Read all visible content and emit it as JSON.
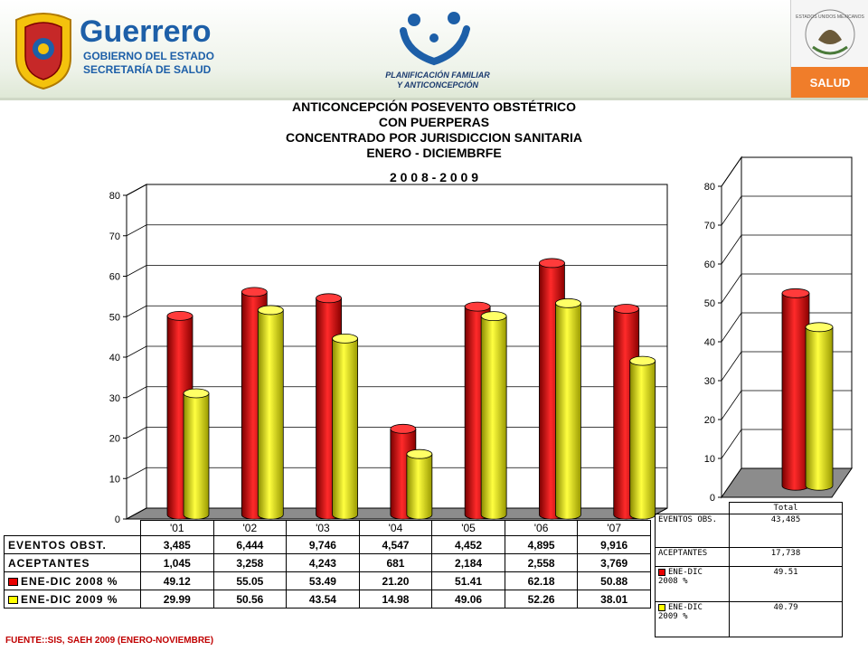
{
  "header": {
    "brand": "Guerrero",
    "brand_sub1": "GOBIERNO DEL ESTADO",
    "brand_sub2": "SECRETARÍA DE SALUD",
    "pf_line1": "PLANIFICACIÓN FAMILIAR",
    "pf_line2": "Y ANTICONCEPCIÓN",
    "seal_text": "ESTADOS UNIDOS MEXICANOS",
    "salud_label": "SALUD",
    "colors": {
      "brand_blue": "#1d5fa8",
      "salud_orange": "#f07d2a"
    }
  },
  "title_lines": [
    "ANTICONCEPCIÓN POSEVENTO OBSTÉTRICO",
    "CON PUERPERAS",
    "CONCENTRADO POR JURISDICCION SANITARIA",
    "ENERO  -  DICIEMBRFE",
    "2 0 0 8  -  2 0 0 9"
  ],
  "chart_data": [
    {
      "type": "bar",
      "categories": [
        "'01",
        "'02",
        "'03",
        "'04",
        "'05",
        "'06",
        "'07"
      ],
      "series": [
        {
          "name": "ENE-DIC 2008 %",
          "color": "#e80000",
          "values": [
            49.12,
            55.05,
            53.49,
            21.2,
            51.41,
            62.18,
            50.88
          ]
        },
        {
          "name": "ENE-DIC 2009 %",
          "color": "#ffff00",
          "values": [
            29.99,
            50.56,
            43.54,
            14.98,
            49.06,
            52.26,
            38.01
          ]
        }
      ],
      "ylim": [
        0,
        80
      ],
      "yticks": [
        "0",
        "10",
        "20",
        "30",
        "40",
        "50",
        "60",
        "70",
        "80"
      ],
      "grid": true
    },
    {
      "type": "bar",
      "categories": [
        "Total"
      ],
      "series": [
        {
          "name": "ENE-DIC 2008 %",
          "color": "#e80000",
          "values": [
            49.51
          ]
        },
        {
          "name": "ENE-DIC 2009 %",
          "color": "#ffff00",
          "values": [
            40.79
          ]
        }
      ],
      "ylim": [
        0,
        80
      ],
      "yticks": [
        "0",
        "10",
        "20",
        "30",
        "40",
        "50",
        "60",
        "70",
        "80"
      ],
      "grid": true
    }
  ],
  "table": {
    "rows": [
      {
        "label": "EVENTOS OBST.",
        "swatch": "",
        "values": [
          "3,485",
          "6,444",
          "9,746",
          "4,547",
          "4,452",
          "4,895",
          "9,916"
        ]
      },
      {
        "label": "ACEPTANTES",
        "swatch": "",
        "values": [
          "1,045",
          "3,258",
          "4,243",
          "681",
          "2,184",
          "2,558",
          "3,769"
        ]
      },
      {
        "label": "ENE-DIC 2008 %",
        "swatch": "#e80000",
        "values": [
          "49.12",
          "55.05",
          "53.49",
          "21.20",
          "51.41",
          "62.18",
          "50.88"
        ]
      },
      {
        "label": "ENE-DIC 2009 %",
        "swatch": "#ffff00",
        "values": [
          "29.99",
          "50.56",
          "43.54",
          "14.98",
          "49.06",
          "52.26",
          "38.01"
        ]
      }
    ]
  },
  "total_table": {
    "rows": [
      {
        "label": "EVENTOS OBS.",
        "swatch": "",
        "value": "43,485"
      },
      {
        "label": "ACEPTANTES",
        "swatch": "",
        "value": "17,738"
      },
      {
        "label": "ENE-DIC 2008 %",
        "swatch": "#e80000",
        "value": "49.51"
      },
      {
        "label": "ENE-DIC 2009 %",
        "swatch": "#ffff00",
        "value": "40.79"
      }
    ]
  },
  "footer": {
    "source": "FUENTE::SIS, SAEH 2009 (ENERO-NOVIEMBRE)"
  }
}
